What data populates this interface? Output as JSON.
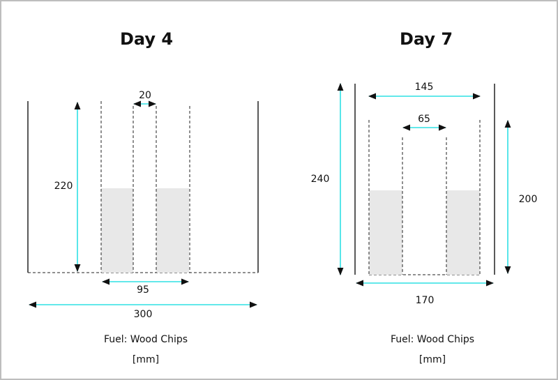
{
  "diagrams": [
    {
      "title": "Day 4",
      "dims": {
        "height": "220",
        "gap": "20",
        "inner_width": "95",
        "outer_width": "300"
      },
      "fuel": "Fuel: Wood Chips",
      "unit": "[mm]"
    },
    {
      "title": "Day 7",
      "dims": {
        "outer_height": "240",
        "top_width": "145",
        "gap": "65",
        "inner_height": "200",
        "bottom_width": "170"
      },
      "fuel": "Fuel: Wood Chips",
      "unit": "[mm]"
    }
  ],
  "colors": {
    "dimension_arrow": "#2fe0e4",
    "fuel_fill": "#e8e8e8",
    "line": "#222222"
  }
}
